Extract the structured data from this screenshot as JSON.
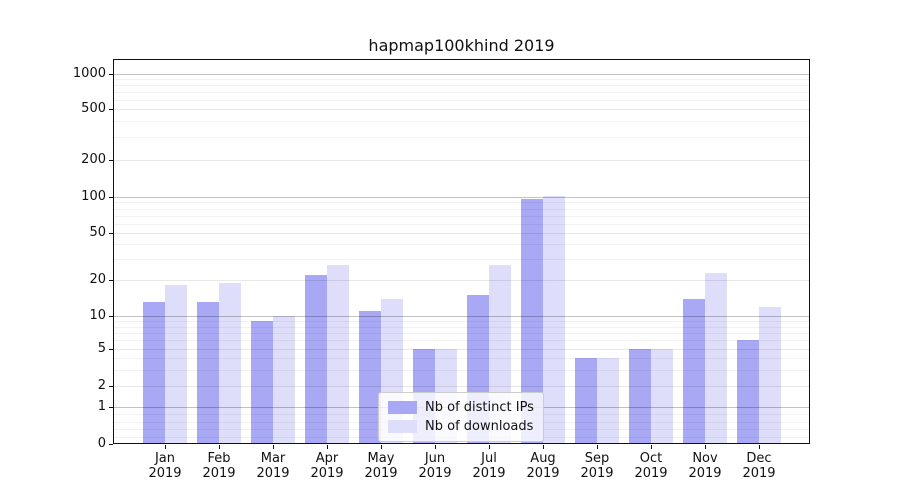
{
  "chart_data": {
    "type": "bar",
    "title": "hapmap100khind 2019",
    "categories": [
      "Jan",
      "Feb",
      "Mar",
      "Apr",
      "May",
      "Jun",
      "Jul",
      "Aug",
      "Sep",
      "Oct",
      "Nov",
      "Dec"
    ],
    "x_sublabel": "2019",
    "series": [
      {
        "name": "Nb of distinct IPs",
        "color": "#a8a8f5",
        "values": [
          13,
          13,
          9,
          22,
          11,
          5,
          15,
          97,
          4,
          5,
          14,
          6
        ]
      },
      {
        "name": "Nb of downloads",
        "color": "#dedefa",
        "values": [
          18,
          19,
          10,
          27,
          14,
          5,
          27,
          102,
          4,
          5,
          23,
          12
        ]
      }
    ],
    "yscale": "symlog",
    "yticks": [
      0,
      1,
      2,
      5,
      10,
      20,
      50,
      100,
      200,
      500,
      1000
    ],
    "ylim": [
      0,
      1300
    ],
    "xlabel": "",
    "ylabel": "",
    "grid": true,
    "legend_position": "lower center"
  }
}
